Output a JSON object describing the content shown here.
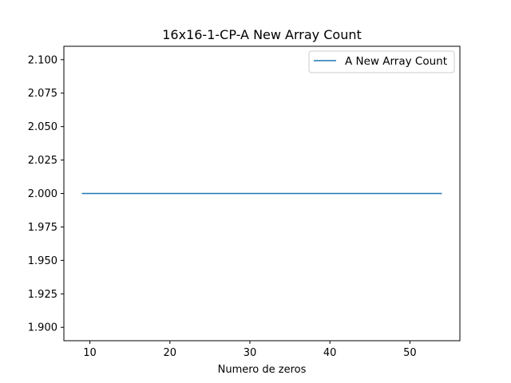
{
  "chart_data": {
    "type": "line",
    "title": "16x16-1-CP-A New Array Count",
    "xlabel": "Numero de zeros",
    "ylabel": "",
    "xlim": [
      6.75,
      56.25
    ],
    "ylim": [
      1.89,
      2.11
    ],
    "x_ticks": [
      10,
      20,
      30,
      40,
      50
    ],
    "y_ticks": [
      1.9,
      1.925,
      1.95,
      1.975,
      2.0,
      2.025,
      2.05,
      2.075,
      2.1
    ],
    "y_tick_labels": [
      "1.900",
      "1.925",
      "1.950",
      "1.975",
      "2.000",
      "2.025",
      "2.050",
      "2.075",
      "2.100"
    ],
    "grid": false,
    "legend_position": "top-right",
    "series": [
      {
        "name": "A New Array Count",
        "color": "#1f77b4",
        "x": [
          9,
          54
        ],
        "y": [
          2.0,
          2.0
        ]
      }
    ]
  }
}
